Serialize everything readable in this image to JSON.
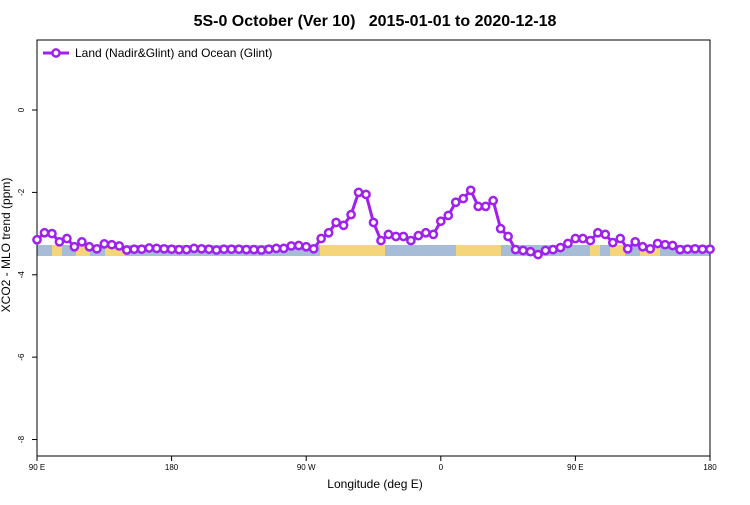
{
  "chart_data": {
    "type": "line",
    "title": "5S-0 October (Ver 10)   2015-01-01 to 2020-12-18",
    "x_label": "Longitude (deg E)",
    "y_label": "XCO2 - MLO trend (ppm)",
    "x": [
      90,
      95,
      100,
      105,
      110,
      115,
      120,
      125,
      130,
      135,
      140,
      145,
      150,
      155,
      160,
      165,
      170,
      175,
      180,
      185,
      190,
      195,
      200,
      205,
      210,
      215,
      220,
      225,
      230,
      235,
      240,
      245,
      250,
      255,
      260,
      265,
      270,
      275,
      280,
      285,
      290,
      295,
      300,
      305,
      310,
      315,
      320,
      325,
      330,
      335,
      340,
      345,
      350,
      355,
      360,
      365,
      370,
      375,
      380,
      385,
      390,
      395,
      400,
      405,
      410,
      415,
      420,
      425,
      430,
      435,
      440,
      445,
      450,
      455,
      460,
      465,
      470,
      475,
      480,
      485,
      490,
      495,
      500,
      505,
      510,
      515,
      520,
      525,
      530,
      535,
      540
    ],
    "series": [
      {
        "name": "Land (Nadir&Glint) and Ocean (Glint)",
        "color": "#a020f0",
        "values": [
          -3.15,
          -2.98,
          -3.0,
          -3.2,
          -3.12,
          -3.32,
          -3.2,
          -3.32,
          -3.37,
          -3.25,
          -3.27,
          -3.3,
          -3.4,
          -3.38,
          -3.38,
          -3.35,
          -3.36,
          -3.37,
          -3.38,
          -3.39,
          -3.39,
          -3.36,
          -3.37,
          -3.38,
          -3.4,
          -3.38,
          -3.38,
          -3.38,
          -3.39,
          -3.39,
          -3.4,
          -3.38,
          -3.36,
          -3.36,
          -3.3,
          -3.29,
          -3.32,
          -3.37,
          -3.12,
          -2.98,
          -2.73,
          -2.8,
          -2.54,
          -2.0,
          -2.05,
          -2.73,
          -3.17,
          -3.02,
          -3.07,
          -3.07,
          -3.17,
          -3.05,
          -2.98,
          -3.02,
          -2.7,
          -2.56,
          -2.24,
          -2.15,
          -1.95,
          -2.34,
          -2.34,
          -2.2,
          -2.88,
          -3.07,
          -3.39,
          -3.41,
          -3.44,
          -3.51,
          -3.41,
          -3.39,
          -3.34,
          -3.24,
          -3.12,
          -3.12,
          -3.17,
          -2.98,
          -3.02,
          -3.22,
          -3.12,
          -3.37,
          -3.2,
          -3.32,
          -3.37,
          -3.24,
          -3.27,
          -3.29,
          -3.39,
          -3.38,
          -3.37,
          -3.38,
          -3.38
        ]
      }
    ],
    "xlim": [
      90,
      540
    ],
    "xticks": [
      {
        "value": 90,
        "label": "90 E"
      },
      {
        "value": 180,
        "label": "180"
      },
      {
        "value": 270,
        "label": "90 W"
      },
      {
        "value": 360,
        "label": "0"
      },
      {
        "value": 450,
        "label": "90 E"
      },
      {
        "value": 540,
        "label": "180"
      }
    ],
    "ylim": [
      -8.4,
      1.7
    ],
    "yticks": [
      0,
      -2,
      -4,
      -6,
      -8
    ],
    "legend": "upper left"
  }
}
